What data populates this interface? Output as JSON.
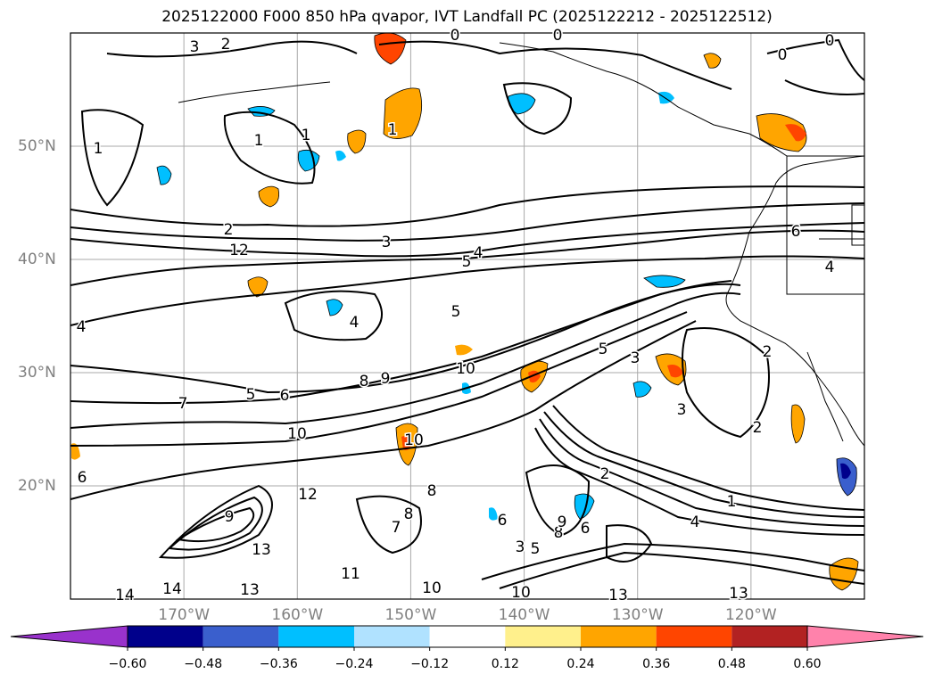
{
  "title": "2025122000 F000 850 hPa qvapor, IVT Landfall PC (2025122212 - 2025122512)",
  "map": {
    "projection": "lat-lon",
    "lon_labels": [
      "170°W",
      "160°W",
      "150°W",
      "140°W",
      "130°W",
      "120°W"
    ],
    "lat_labels": [
      "50°N",
      "40°N",
      "30°N",
      "20°N"
    ],
    "extent": {
      "lon": [
        -180,
        -110
      ],
      "lat": [
        10,
        60
      ]
    },
    "gridlines": true
  },
  "contour_labels": [
    "0",
    "0",
    "0",
    "0",
    "1",
    "1",
    "1",
    "1",
    "1",
    "2",
    "2",
    "2",
    "2",
    "2",
    "3",
    "3",
    "3",
    "3",
    "3",
    "4",
    "4",
    "4",
    "4",
    "4",
    "5",
    "5",
    "5",
    "5",
    "5",
    "6",
    "6",
    "6",
    "6",
    "6",
    "7",
    "7",
    "8",
    "8",
    "8",
    "8",
    "9",
    "9",
    "9",
    "10",
    "10",
    "10",
    "10",
    "10",
    "11",
    "12",
    "12",
    "13",
    "13",
    "13",
    "13",
    "14",
    "14"
  ],
  "colorbar": {
    "colors": [
      "#9932cc",
      "#00008b",
      "#3a5fcd",
      "#00bfff",
      "#b0e2ff",
      "#ffffff",
      "#fff08c",
      "#ffa500",
      "#ff4500",
      "#b22222",
      "#ff82ab"
    ],
    "ticks": [
      "−0.60",
      "−0.48",
      "−0.36",
      "−0.24",
      "−0.12",
      "0.12",
      "0.24",
      "0.36",
      "0.48",
      "0.60"
    ]
  }
}
